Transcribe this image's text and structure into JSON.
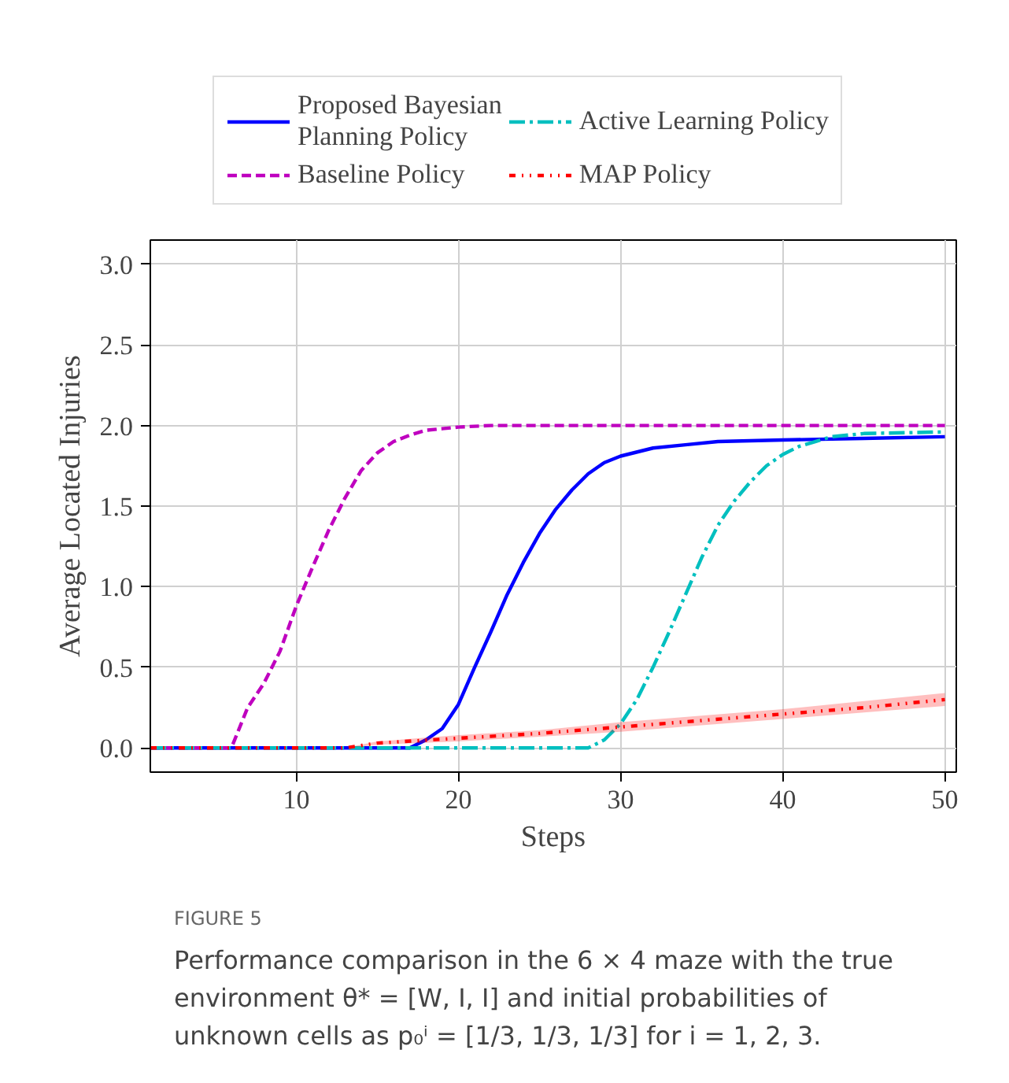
{
  "chart_data": {
    "type": "line",
    "xlabel": "Steps",
    "ylabel": "Average Located Injuries",
    "xlim": [
      1,
      50.7
    ],
    "ylim": [
      -0.15,
      3.15
    ],
    "xticks": [
      10,
      20,
      30,
      40,
      50
    ],
    "yticks": [
      {
        "value": 0,
        "label": "0.0"
      },
      {
        "value": 0.5,
        "label": "0.5"
      },
      {
        "value": 1,
        "label": "1.0"
      },
      {
        "value": 1.5,
        "label": "1.5"
      },
      {
        "value": 2,
        "label": "2.0"
      },
      {
        "value": 2.5,
        "label": "2.5"
      },
      {
        "value": 3,
        "label": "3.0"
      }
    ],
    "grid": true,
    "legend": "top",
    "marker": "none",
    "series": [
      {
        "name": "Proposed Bayesian\nPlanning Policy",
        "color": "#0000ff",
        "line_style": "solid",
        "x": [
          1,
          17,
          18,
          19,
          20,
          21,
          22,
          23,
          24,
          25,
          26,
          27,
          28,
          29,
          30,
          32,
          34,
          36,
          40,
          45,
          50
        ],
        "values": [
          0,
          0,
          0.05,
          0.12,
          0.27,
          0.5,
          0.72,
          0.95,
          1.15,
          1.33,
          1.48,
          1.6,
          1.7,
          1.77,
          1.81,
          1.86,
          1.88,
          1.9,
          1.91,
          1.92,
          1.93
        ]
      },
      {
        "name": "Baseline Policy",
        "color": "#bf00bf",
        "line_style": "dashed",
        "x": [
          1,
          6,
          7,
          8,
          9,
          10,
          11,
          12,
          13,
          14,
          15,
          16,
          17,
          18,
          19,
          20,
          22,
          50
        ],
        "values": [
          0,
          0,
          0.25,
          0.4,
          0.6,
          0.88,
          1.12,
          1.35,
          1.55,
          1.72,
          1.83,
          1.9,
          1.94,
          1.97,
          1.98,
          1.99,
          2.0,
          2.0
        ]
      },
      {
        "name": "Active Learning Policy",
        "color": "#00bfbf",
        "line_style": "dashdot",
        "x": [
          1,
          28,
          29,
          30,
          31,
          32,
          33,
          34,
          35,
          36,
          37,
          38,
          39,
          40,
          41,
          42,
          43,
          45,
          50
        ],
        "values": [
          0,
          0,
          0.05,
          0.15,
          0.3,
          0.5,
          0.72,
          0.95,
          1.18,
          1.38,
          1.53,
          1.65,
          1.75,
          1.82,
          1.87,
          1.9,
          1.93,
          1.95,
          1.96
        ]
      },
      {
        "name": "MAP Policy",
        "color": "#ff0000",
        "line_style": "dotted",
        "x": [
          1,
          13,
          15,
          20,
          25,
          30,
          35,
          40,
          45,
          50
        ],
        "values": [
          0,
          0,
          0.03,
          0.06,
          0.09,
          0.13,
          0.17,
          0.21,
          0.25,
          0.3
        ],
        "lower": [
          0,
          0,
          0.02,
          0.04,
          0.07,
          0.1,
          0.14,
          0.18,
          0.22,
          0.26
        ],
        "upper": [
          0,
          0,
          0.04,
          0.08,
          0.11,
          0.16,
          0.2,
          0.24,
          0.29,
          0.34
        ]
      }
    ],
    "annotations": [
      "FIGURE 5",
      "Performance comparison in the 6 × 4 maze with the true environment θ* = [W, I, I] and initial probabilities of unknown cells as p₀ⁱ = [1/3, 1/3, 1/3] for i = 1, 2, 3."
    ]
  }
}
